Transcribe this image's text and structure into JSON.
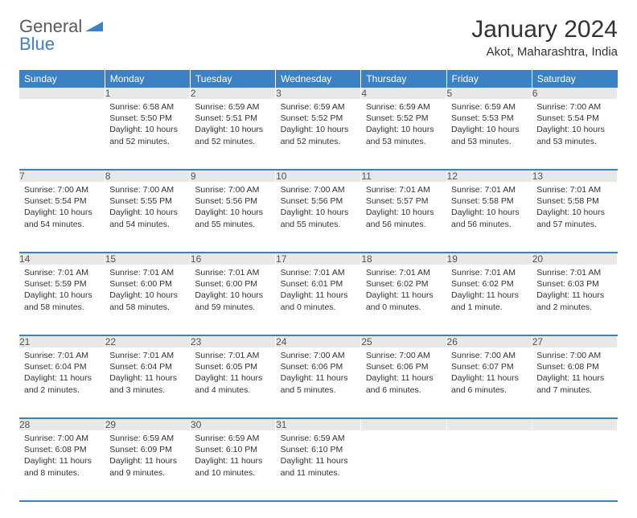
{
  "logo": {
    "text1": "General",
    "text2": "Blue"
  },
  "title": "January 2024",
  "location": "Akot, Maharashtra, India",
  "headers": [
    "Sunday",
    "Monday",
    "Tuesday",
    "Wednesday",
    "Thursday",
    "Friday",
    "Saturday"
  ],
  "colors": {
    "accent": "#3b81c3",
    "header_bg": "#3b81c3",
    "header_text": "#ffffff",
    "daynum_bg": "#e8e8e8",
    "text": "#333333",
    "logo_gray": "#5a5a5a"
  },
  "weeks": [
    [
      null,
      {
        "n": "1",
        "sr": "6:58 AM",
        "ss": "5:50 PM",
        "dl": "10 hours and 52 minutes."
      },
      {
        "n": "2",
        "sr": "6:59 AM",
        "ss": "5:51 PM",
        "dl": "10 hours and 52 minutes."
      },
      {
        "n": "3",
        "sr": "6:59 AM",
        "ss": "5:52 PM",
        "dl": "10 hours and 52 minutes."
      },
      {
        "n": "4",
        "sr": "6:59 AM",
        "ss": "5:52 PM",
        "dl": "10 hours and 53 minutes."
      },
      {
        "n": "5",
        "sr": "6:59 AM",
        "ss": "5:53 PM",
        "dl": "10 hours and 53 minutes."
      },
      {
        "n": "6",
        "sr": "7:00 AM",
        "ss": "5:54 PM",
        "dl": "10 hours and 53 minutes."
      }
    ],
    [
      {
        "n": "7",
        "sr": "7:00 AM",
        "ss": "5:54 PM",
        "dl": "10 hours and 54 minutes."
      },
      {
        "n": "8",
        "sr": "7:00 AM",
        "ss": "5:55 PM",
        "dl": "10 hours and 54 minutes."
      },
      {
        "n": "9",
        "sr": "7:00 AM",
        "ss": "5:56 PM",
        "dl": "10 hours and 55 minutes."
      },
      {
        "n": "10",
        "sr": "7:00 AM",
        "ss": "5:56 PM",
        "dl": "10 hours and 55 minutes."
      },
      {
        "n": "11",
        "sr": "7:01 AM",
        "ss": "5:57 PM",
        "dl": "10 hours and 56 minutes."
      },
      {
        "n": "12",
        "sr": "7:01 AM",
        "ss": "5:58 PM",
        "dl": "10 hours and 56 minutes."
      },
      {
        "n": "13",
        "sr": "7:01 AM",
        "ss": "5:58 PM",
        "dl": "10 hours and 57 minutes."
      }
    ],
    [
      {
        "n": "14",
        "sr": "7:01 AM",
        "ss": "5:59 PM",
        "dl": "10 hours and 58 minutes."
      },
      {
        "n": "15",
        "sr": "7:01 AM",
        "ss": "6:00 PM",
        "dl": "10 hours and 58 minutes."
      },
      {
        "n": "16",
        "sr": "7:01 AM",
        "ss": "6:00 PM",
        "dl": "10 hours and 59 minutes."
      },
      {
        "n": "17",
        "sr": "7:01 AM",
        "ss": "6:01 PM",
        "dl": "11 hours and 0 minutes."
      },
      {
        "n": "18",
        "sr": "7:01 AM",
        "ss": "6:02 PM",
        "dl": "11 hours and 0 minutes."
      },
      {
        "n": "19",
        "sr": "7:01 AM",
        "ss": "6:02 PM",
        "dl": "11 hours and 1 minute."
      },
      {
        "n": "20",
        "sr": "7:01 AM",
        "ss": "6:03 PM",
        "dl": "11 hours and 2 minutes."
      }
    ],
    [
      {
        "n": "21",
        "sr": "7:01 AM",
        "ss": "6:04 PM",
        "dl": "11 hours and 2 minutes."
      },
      {
        "n": "22",
        "sr": "7:01 AM",
        "ss": "6:04 PM",
        "dl": "11 hours and 3 minutes."
      },
      {
        "n": "23",
        "sr": "7:01 AM",
        "ss": "6:05 PM",
        "dl": "11 hours and 4 minutes."
      },
      {
        "n": "24",
        "sr": "7:00 AM",
        "ss": "6:06 PM",
        "dl": "11 hours and 5 minutes."
      },
      {
        "n": "25",
        "sr": "7:00 AM",
        "ss": "6:06 PM",
        "dl": "11 hours and 6 minutes."
      },
      {
        "n": "26",
        "sr": "7:00 AM",
        "ss": "6:07 PM",
        "dl": "11 hours and 6 minutes."
      },
      {
        "n": "27",
        "sr": "7:00 AM",
        "ss": "6:08 PM",
        "dl": "11 hours and 7 minutes."
      }
    ],
    [
      {
        "n": "28",
        "sr": "7:00 AM",
        "ss": "6:08 PM",
        "dl": "11 hours and 8 minutes."
      },
      {
        "n": "29",
        "sr": "6:59 AM",
        "ss": "6:09 PM",
        "dl": "11 hours and 9 minutes."
      },
      {
        "n": "30",
        "sr": "6:59 AM",
        "ss": "6:10 PM",
        "dl": "11 hours and 10 minutes."
      },
      {
        "n": "31",
        "sr": "6:59 AM",
        "ss": "6:10 PM",
        "dl": "11 hours and 11 minutes."
      },
      null,
      null,
      null
    ]
  ],
  "labels": {
    "sunrise": "Sunrise:",
    "sunset": "Sunset:",
    "daylight": "Daylight:"
  }
}
